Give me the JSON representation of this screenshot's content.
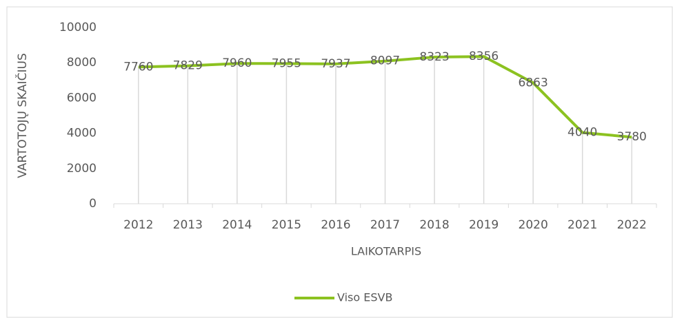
{
  "chart_data": {
    "type": "line",
    "x_label": "LAIKOTARPIS",
    "y_label": "VARTOTOJŲ SKAIČIUS",
    "categories": [
      "2012",
      "2013",
      "2014",
      "2015",
      "2016",
      "2017",
      "2018",
      "2019",
      "2020",
      "2021",
      "2022"
    ],
    "series": [
      {
        "name": "Viso ESVB",
        "color": "#8cc220",
        "values": [
          7760,
          7829,
          7960,
          7955,
          7937,
          8097,
          8323,
          8356,
          6863,
          4040,
          3780
        ]
      }
    ],
    "ylim": [
      0,
      10000
    ],
    "yticks": [
      0,
      2000,
      4000,
      6000,
      8000,
      10000
    ],
    "drop_lines": true,
    "data_labels": true,
    "legend": "bottom"
  }
}
